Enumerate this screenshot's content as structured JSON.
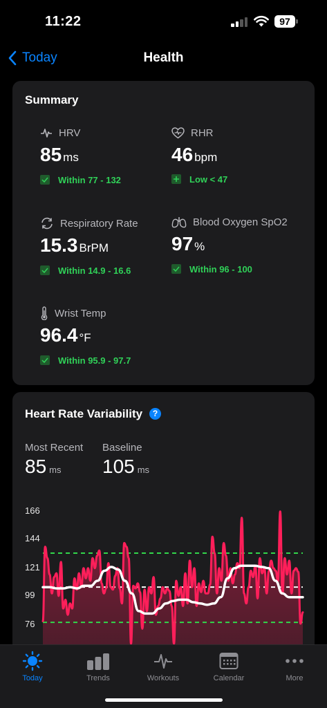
{
  "status_bar": {
    "time": "11:22",
    "battery": "97"
  },
  "nav": {
    "back_label": "Today",
    "title": "Health"
  },
  "summary": {
    "title": "Summary",
    "metrics": [
      {
        "label": "HRV",
        "icon": "pulse-icon",
        "value": "85",
        "unit": "ms",
        "range": "Within 77 -  132",
        "badge": "check"
      },
      {
        "label": "RHR",
        "icon": "heart-rate-icon",
        "value": "46",
        "unit": "bpm",
        "range": "Low < 47",
        "badge": "plus"
      },
      {
        "label": "Respiratory Rate",
        "icon": "respiratory-icon",
        "value": "15.3",
        "unit": "BrPM",
        "range": "Within 14.9 - 16.6",
        "badge": "check"
      },
      {
        "label": "Blood Oxygen SpO2",
        "icon": "lungs-icon",
        "value": "97",
        "unit": "%",
        "range": "Within 96 - 100",
        "badge": "check"
      },
      {
        "label": "Wrist Temp",
        "icon": "thermometer-icon",
        "value": "96.4",
        "unit": "°F",
        "range": "Within 95.9 - 97.7",
        "badge": "check"
      }
    ]
  },
  "hrv": {
    "title": "Heart Rate Variability",
    "most_recent_label": "Most Recent",
    "most_recent_value": "85",
    "most_recent_unit": "ms",
    "baseline_label": "Baseline",
    "baseline_value": "105",
    "baseline_unit": "ms"
  },
  "chart_data": {
    "type": "line",
    "y_ticks": [
      "166",
      "144",
      "121",
      "99",
      "76"
    ],
    "ylim": [
      60,
      170
    ],
    "reference_lines": {
      "upper": 132,
      "baseline": 105,
      "lower": 77
    },
    "colors": {
      "series": "#ff1f5a",
      "trend": "#ffffff",
      "range": "#32d74b"
    },
    "series": [
      {
        "values": [
          78,
          137,
          128,
          115,
          100,
          113,
          116,
          98,
          125,
          88,
          95,
          83,
          92,
          88,
          112,
          103,
          116,
          105,
          120,
          112,
          120,
          110,
          128,
          120,
          130,
          134,
          108,
          100,
          104,
          124,
          105,
          103,
          114,
          120,
          104,
          92,
          140,
          137,
          128,
          60,
          106,
          104,
          108,
          101,
          72,
          103,
          86,
          105,
          100,
          113,
          83,
          90,
          96,
          105,
          100,
          104,
          102,
          90,
          60,
          110,
          98,
          105,
          90,
          116,
          92,
          126,
          105,
          120,
          90,
          108,
          101,
          110,
          100,
          100,
          107,
          145,
          132,
          100,
          120,
          110,
          140,
          130,
          110,
          120,
          108,
          115,
          124,
          120,
          160,
          100,
          92,
          105,
          118,
          113,
          122,
          96,
          128,
          116,
          120,
          100,
          118,
          126,
          120,
          118,
          110,
          165,
          100,
          128,
          115,
          126,
          100,
          118,
          120,
          117,
          76,
          85
        ]
      },
      {
        "values": [
          105,
          105,
          104,
          104,
          105,
          104,
          106,
          106,
          110,
          118,
          121,
          119,
          110,
          100,
          86,
          84,
          84,
          88,
          92,
          94,
          95,
          95,
          93,
          92,
          91,
          92,
          97,
          112,
          120,
          122,
          122,
          122,
          121,
          120,
          110,
          100,
          97,
          97,
          97
        ]
      }
    ]
  },
  "tabbar": {
    "tabs": [
      {
        "label": "Today",
        "icon": "sun-icon",
        "active": true
      },
      {
        "label": "Trends",
        "icon": "bar-chart-icon",
        "active": false
      },
      {
        "label": "Workouts",
        "icon": "pulse-icon",
        "active": false
      },
      {
        "label": "Calendar",
        "icon": "calendar-icon",
        "active": false
      },
      {
        "label": "More",
        "icon": "more-icon",
        "active": false
      }
    ]
  }
}
